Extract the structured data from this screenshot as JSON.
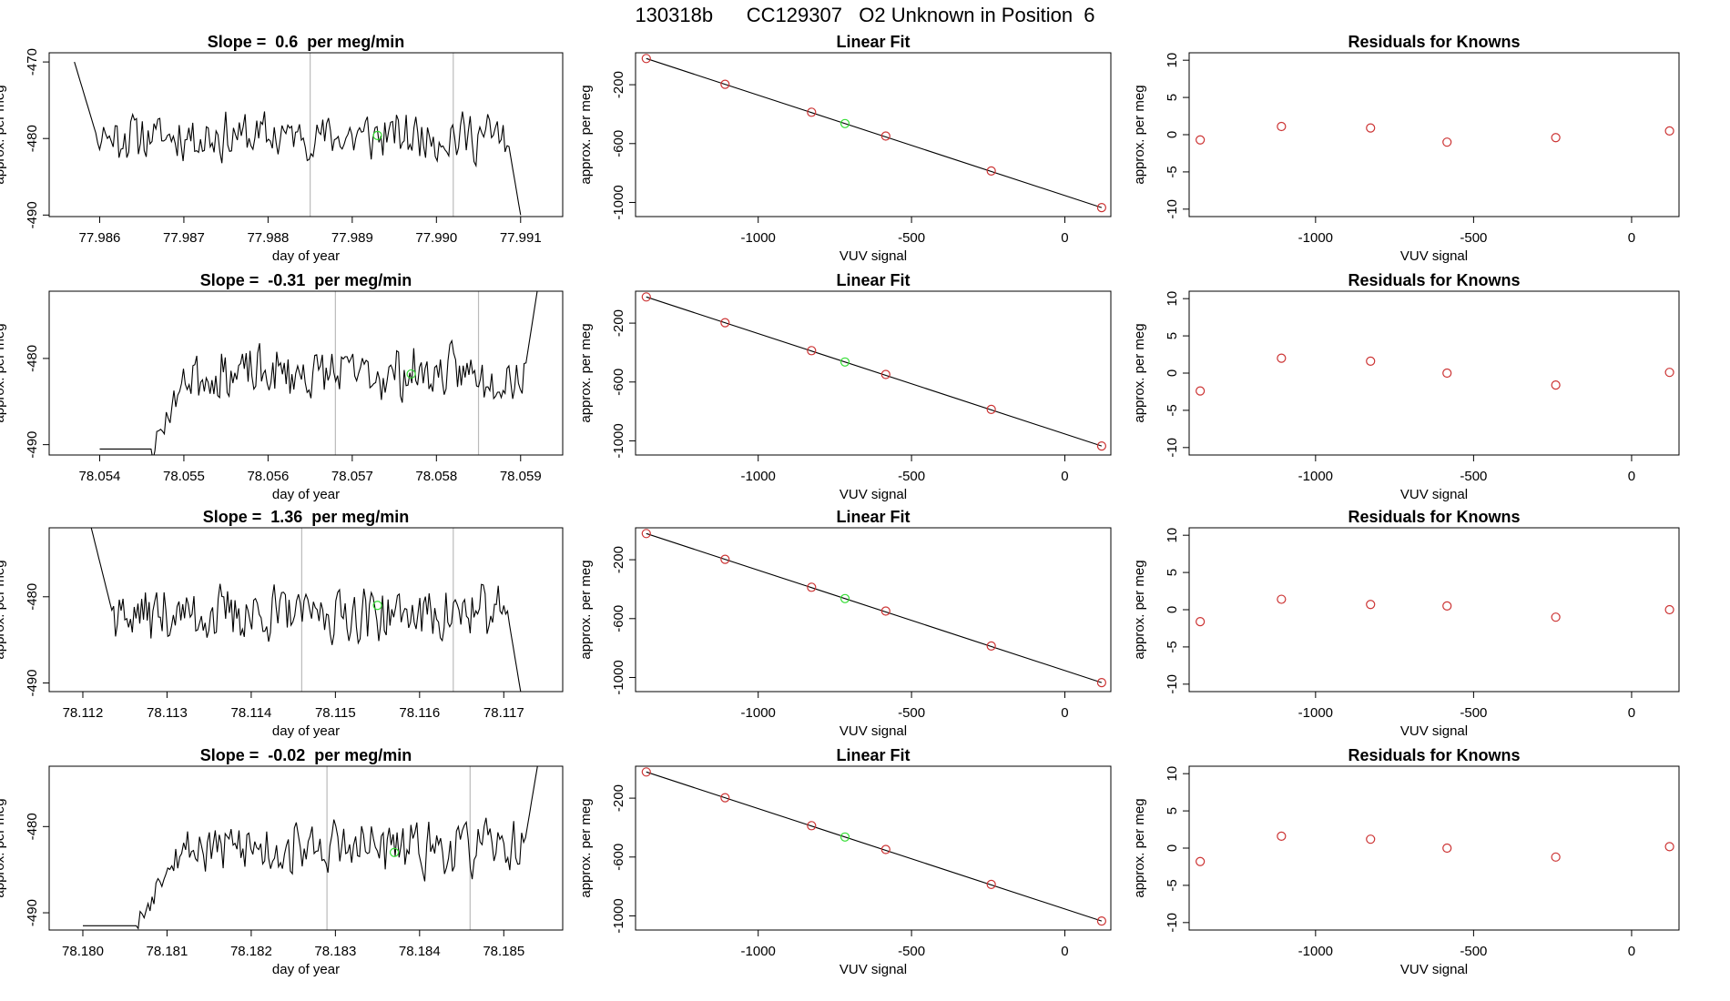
{
  "page_title": "130318b      CC129307   O2 Unknown in Position  6",
  "colors": {
    "trace": "#000000",
    "known_point": "#cc3333",
    "unknown_point": "#33dd33",
    "vline": "#bbbbbb",
    "fit_line": "#000000"
  },
  "chart_data": [
    {
      "type": "line",
      "panel": "timeseries-1",
      "title": "Slope =  0.6  per meg/min",
      "xlabel": "day of year",
      "ylabel": "approx. per meg",
      "xlim": [
        77.9854,
        77.9915
      ],
      "ylim": [
        -490.2,
        -468.8
      ],
      "xticks": [
        "77.986",
        "77.987",
        "77.988",
        "77.989",
        "77.990",
        "77.991"
      ],
      "yticks": [
        "-470",
        "-480",
        "-490"
      ],
      "x_range": [
        77.9857,
        77.991
      ],
      "enter_from": -470,
      "exit_to": -490,
      "level": -479.7,
      "vlines": [
        77.9885,
        77.9902
      ],
      "unknown_point": [
        77.9893,
        -479.6
      ],
      "seed": 11
    },
    {
      "type": "line",
      "panel": "timeseries-2",
      "title": "Slope =  -0.31  per meg/min",
      "xlabel": "day of year",
      "ylabel": "approx. per meg",
      "xlim": [
        78.0534,
        78.0595
      ],
      "ylim": [
        -491.2,
        -472.2
      ],
      "xticks": [
        "78.054",
        "78.055",
        "78.056",
        "78.057",
        "78.058",
        "78.059"
      ],
      "yticks": [
        "-480",
        "-490"
      ],
      "x_range": [
        78.054,
        78.0592
      ],
      "enter_from": -490.5,
      "exit_to": -472,
      "level": -481.8,
      "start_low": -490.5,
      "vlines": [
        78.0568,
        78.0585
      ],
      "unknown_point": [
        78.0577,
        -481.8
      ],
      "seed": 23
    },
    {
      "type": "line",
      "panel": "timeseries-3",
      "title": "Slope =  1.36  per meg/min",
      "xlabel": "day of year",
      "ylabel": "approx. per meg",
      "xlim": [
        78.1116,
        78.1177
      ],
      "ylim": [
        -491.0,
        -472.0
      ],
      "xticks": [
        "78.112",
        "78.113",
        "78.114",
        "78.115",
        "78.116",
        "78.117"
      ],
      "yticks": [
        "-480",
        "-490"
      ],
      "x_range": [
        78.1121,
        78.1172
      ],
      "enter_from": -472,
      "exit_to": -491,
      "level": -482.0,
      "vlines": [
        78.1146,
        78.1164
      ],
      "unknown_point": [
        78.1155,
        -481.0
      ],
      "seed": 37
    },
    {
      "type": "line",
      "panel": "timeseries-4",
      "title": "Slope =  -0.02  per meg/min",
      "xlabel": "day of year",
      "ylabel": "approx. per meg",
      "xlim": [
        78.1796,
        78.1857
      ],
      "ylim": [
        -492.0,
        -473.0
      ],
      "xticks": [
        "78.180",
        "78.181",
        "78.182",
        "78.183",
        "78.184",
        "78.185"
      ],
      "yticks": [
        "-480",
        "-490"
      ],
      "x_range": [
        78.18,
        78.1854
      ],
      "enter_from": -491.5,
      "exit_to": -473,
      "level": -482.5,
      "start_low": -491.5,
      "vlines": [
        78.1829,
        78.1846
      ],
      "unknown_point": [
        78.1837,
        -483.0
      ],
      "seed": 53
    },
    {
      "type": "scatter",
      "panel": "linear-fit-1",
      "title": "Linear Fit",
      "xlabel": "VUV signal",
      "ylabel": "approx. per meg",
      "xlim": [
        -1400,
        150
      ],
      "ylim": [
        -1096,
        17
      ],
      "xticks": [
        "-1000",
        "-500",
        "0"
      ],
      "yticks": [
        "-200",
        "-600",
        "-1000"
      ],
      "knowns": [
        [
          -1365,
          -22
        ],
        [
          -1108,
          -197
        ],
        [
          -826,
          -387
        ],
        [
          -584,
          -549
        ],
        [
          -240,
          -786
        ],
        [
          120,
          -1035
        ]
      ],
      "unknown": [
        -717,
        -464
      ],
      "fit_line": [
        [
          -1365,
          -22
        ],
        [
          120,
          -1035
        ]
      ]
    },
    {
      "type": "scatter",
      "panel": "linear-fit-2",
      "title": "Linear Fit",
      "xlabel": "VUV signal",
      "ylabel": "approx. per meg",
      "xlim": [
        -1400,
        150
      ],
      "ylim": [
        -1096,
        17
      ],
      "xticks": [
        "-1000",
        "-500",
        "0"
      ],
      "yticks": [
        "-200",
        "-600",
        "-1000"
      ],
      "knowns": [
        [
          -1365,
          -22
        ],
        [
          -1108,
          -197
        ],
        [
          -826,
          -387
        ],
        [
          -584,
          -549
        ],
        [
          -240,
          -786
        ],
        [
          120,
          -1035
        ]
      ],
      "unknown": [
        -717,
        -464
      ],
      "fit_line": [
        [
          -1365,
          -22
        ],
        [
          120,
          -1035
        ]
      ]
    },
    {
      "type": "scatter",
      "panel": "linear-fit-3",
      "title": "Linear Fit",
      "xlabel": "VUV signal",
      "ylabel": "approx. per meg",
      "xlim": [
        -1400,
        150
      ],
      "ylim": [
        -1096,
        17
      ],
      "xticks": [
        "-1000",
        "-500",
        "0"
      ],
      "yticks": [
        "-200",
        "-600",
        "-1000"
      ],
      "knowns": [
        [
          -1365,
          -22
        ],
        [
          -1108,
          -197
        ],
        [
          -826,
          -387
        ],
        [
          -584,
          -549
        ],
        [
          -240,
          -786
        ],
        [
          120,
          -1035
        ]
      ],
      "unknown": [
        -717,
        -464
      ],
      "fit_line": [
        [
          -1365,
          -22
        ],
        [
          120,
          -1035
        ]
      ]
    },
    {
      "type": "scatter",
      "panel": "linear-fit-4",
      "title": "Linear Fit",
      "xlabel": "VUV signal",
      "ylabel": "approx. per meg",
      "xlim": [
        -1400,
        150
      ],
      "ylim": [
        -1096,
        17
      ],
      "xticks": [
        "-1000",
        "-500",
        "0"
      ],
      "yticks": [
        "-200",
        "-600",
        "-1000"
      ],
      "knowns": [
        [
          -1365,
          -22
        ],
        [
          -1108,
          -197
        ],
        [
          -826,
          -387
        ],
        [
          -584,
          -549
        ],
        [
          -240,
          -786
        ],
        [
          120,
          -1035
        ]
      ],
      "unknown": [
        -717,
        -464
      ],
      "fit_line": [
        [
          -1365,
          -22
        ],
        [
          120,
          -1035
        ]
      ]
    },
    {
      "type": "scatter",
      "panel": "residuals-1",
      "title": "Residuals for Knowns",
      "xlabel": "VUV signal",
      "ylabel": "approx. per meg",
      "xlim": [
        -1400,
        150
      ],
      "ylim": [
        -11,
        11
      ],
      "xticks": [
        "-1000",
        "-500",
        "0"
      ],
      "yticks": [
        "10",
        "5",
        "0",
        "-5",
        "-10"
      ],
      "x": [
        -1365,
        -1108,
        -826,
        -584,
        -240,
        120
      ],
      "y": [
        -0.7,
        1.1,
        0.9,
        -1.0,
        -0.4,
        0.5
      ]
    },
    {
      "type": "scatter",
      "panel": "residuals-2",
      "title": "Residuals for Knowns",
      "xlabel": "VUV signal",
      "ylabel": "approx. per meg",
      "xlim": [
        -1400,
        150
      ],
      "ylim": [
        -11,
        11
      ],
      "xticks": [
        "-1000",
        "-500",
        "0"
      ],
      "yticks": [
        "10",
        "5",
        "0",
        "-5",
        "-10"
      ],
      "x": [
        -1365,
        -1108,
        -826,
        -584,
        -240,
        120
      ],
      "y": [
        -2.4,
        2.0,
        1.6,
        0.0,
        -1.6,
        0.1
      ]
    },
    {
      "type": "scatter",
      "panel": "residuals-3",
      "title": "Residuals for Knowns",
      "xlabel": "VUV signal",
      "ylabel": "approx. per meg",
      "xlim": [
        -1400,
        150
      ],
      "ylim": [
        -11,
        11
      ],
      "xticks": [
        "-1000",
        "-500",
        "0"
      ],
      "yticks": [
        "10",
        "5",
        "0",
        "-5",
        "-10"
      ],
      "x": [
        -1365,
        -1108,
        -826,
        -584,
        -240,
        120
      ],
      "y": [
        -1.6,
        1.4,
        0.7,
        0.5,
        -1.0,
        0.0
      ]
    },
    {
      "type": "scatter",
      "panel": "residuals-4",
      "title": "Residuals for Knowns",
      "xlabel": "VUV signal",
      "ylabel": "approx. per meg",
      "xlim": [
        -1400,
        150
      ],
      "ylim": [
        -11,
        11
      ],
      "xticks": [
        "-1000",
        "-500",
        "0"
      ],
      "yticks": [
        "10",
        "5",
        "0",
        "-5",
        "-10"
      ],
      "x": [
        -1365,
        -1108,
        -826,
        -584,
        -240,
        120
      ],
      "y": [
        -1.8,
        1.6,
        1.2,
        0.0,
        -1.2,
        0.2
      ]
    }
  ]
}
